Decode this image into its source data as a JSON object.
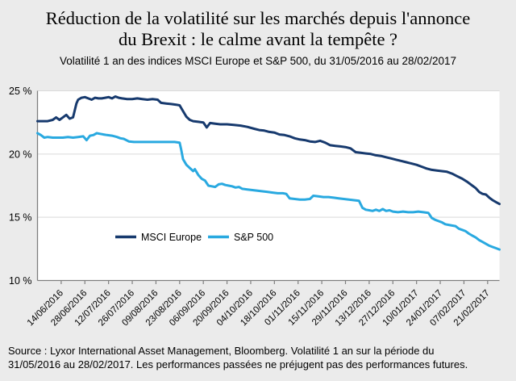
{
  "header": {
    "title_lines": [
      "Réduction de la volatilité sur les marchés depuis l'annonce",
      "du Brexit : le calme avant la tempête ?"
    ],
    "subtitle": "Volatilité 1 an des indices MSCI Europe et S&P 500, du 31/05/2016 au 28/02/2017"
  },
  "footer": {
    "source_lines": [
      "Source : Lyxor International Asset Management, Bloomberg. Volatilité 1 an sur la période du",
      "31/05/2016 au 28/02/2017. Les performances passées ne préjugent pas des performances futures."
    ]
  },
  "colors": {
    "background": "#ebebeb",
    "plot_background": "#ffffff",
    "gridline": "#d9d9d9",
    "axis": "#7f7f7f",
    "msci_europe": "#173A6E",
    "sp500": "#29A9E0",
    "text": "#000000"
  },
  "chart_data": {
    "type": "line",
    "title": "Réduction de la volatilité sur les marchés depuis l'annonce du Brexit : le calme avant la tempête ?",
    "subtitle": "Volatilité 1 an des indices MSCI Europe et S&P 500, du 31/05/2016 au 28/02/2017",
    "grid": true,
    "legend_position": "inside-bottom-left",
    "x_domain": [
      "31/05/2016",
      "28/02/2017"
    ],
    "x_total_days": 273,
    "x_tick_days": [
      14,
      28,
      42,
      56,
      70,
      84,
      98,
      112,
      126,
      140,
      154,
      168,
      182,
      196,
      210,
      224,
      238,
      252,
      266
    ],
    "x_tick_labels": [
      "14/06/2016",
      "28/06/2016",
      "12/07/2016",
      "26/07/2016",
      "09/08/2016",
      "23/08/2016",
      "06/09/2016",
      "20/09/2016",
      "04/10/2016",
      "18/10/2016",
      "01/11/2016",
      "15/11/2016",
      "29/11/2016",
      "13/12/2016",
      "27/12/2016",
      "10/01/2017",
      "24/01/2017",
      "07/02/2017",
      "21/02/2017"
    ],
    "y_axis": {
      "min": 10,
      "max": 25,
      "unit": "%",
      "tick_values": [
        10,
        15,
        20,
        25
      ],
      "tick_labels": [
        "10 %",
        "15 %",
        "20 %",
        "25 %"
      ],
      "gridline_values": [
        15,
        20,
        25
      ]
    },
    "series": [
      {
        "name": "MSCI Europe",
        "color": "#173A6E",
        "points": [
          [
            0,
            22.6
          ],
          [
            3,
            22.6
          ],
          [
            6,
            22.6
          ],
          [
            9,
            22.7
          ],
          [
            11,
            22.9
          ],
          [
            13,
            22.7
          ],
          [
            15,
            22.9
          ],
          [
            17,
            23.1
          ],
          [
            19,
            22.8
          ],
          [
            21,
            22.9
          ],
          [
            23,
            24.0
          ],
          [
            24,
            24.3
          ],
          [
            26,
            24.45
          ],
          [
            28,
            24.5
          ],
          [
            30,
            24.4
          ],
          [
            32,
            24.3
          ],
          [
            34,
            24.45
          ],
          [
            36,
            24.4
          ],
          [
            38,
            24.4
          ],
          [
            40,
            24.45
          ],
          [
            42,
            24.5
          ],
          [
            44,
            24.4
          ],
          [
            46,
            24.55
          ],
          [
            48,
            24.45
          ],
          [
            50,
            24.4
          ],
          [
            53,
            24.35
          ],
          [
            56,
            24.35
          ],
          [
            59,
            24.4
          ],
          [
            62,
            24.35
          ],
          [
            65,
            24.3
          ],
          [
            68,
            24.35
          ],
          [
            71,
            24.3
          ],
          [
            73,
            24.05
          ],
          [
            76,
            24.0
          ],
          [
            79,
            23.95
          ],
          [
            82,
            23.9
          ],
          [
            84,
            23.85
          ],
          [
            86,
            23.4
          ],
          [
            88,
            22.95
          ],
          [
            90,
            22.7
          ],
          [
            92,
            22.6
          ],
          [
            95,
            22.55
          ],
          [
            98,
            22.5
          ],
          [
            100,
            22.1
          ],
          [
            102,
            22.45
          ],
          [
            105,
            22.4
          ],
          [
            108,
            22.35
          ],
          [
            112,
            22.35
          ],
          [
            116,
            22.3
          ],
          [
            120,
            22.25
          ],
          [
            124,
            22.15
          ],
          [
            128,
            22.0
          ],
          [
            131,
            21.9
          ],
          [
            134,
            21.85
          ],
          [
            137,
            21.75
          ],
          [
            140,
            21.7
          ],
          [
            143,
            21.55
          ],
          [
            146,
            21.5
          ],
          [
            149,
            21.4
          ],
          [
            152,
            21.25
          ],
          [
            155,
            21.15
          ],
          [
            158,
            21.1
          ],
          [
            161,
            21.0
          ],
          [
            164,
            20.95
          ],
          [
            167,
            21.05
          ],
          [
            170,
            20.9
          ],
          [
            173,
            20.7
          ],
          [
            176,
            20.65
          ],
          [
            179,
            20.6
          ],
          [
            182,
            20.55
          ],
          [
            185,
            20.45
          ],
          [
            188,
            20.15
          ],
          [
            191,
            20.1
          ],
          [
            194,
            20.05
          ],
          [
            197,
            20.0
          ],
          [
            200,
            19.9
          ],
          [
            203,
            19.85
          ],
          [
            206,
            19.75
          ],
          [
            209,
            19.65
          ],
          [
            212,
            19.55
          ],
          [
            215,
            19.45
          ],
          [
            218,
            19.35
          ],
          [
            221,
            19.25
          ],
          [
            224,
            19.15
          ],
          [
            227,
            19.0
          ],
          [
            230,
            18.85
          ],
          [
            233,
            18.75
          ],
          [
            236,
            18.7
          ],
          [
            239,
            18.65
          ],
          [
            242,
            18.6
          ],
          [
            245,
            18.45
          ],
          [
            248,
            18.25
          ],
          [
            251,
            18.05
          ],
          [
            254,
            17.8
          ],
          [
            257,
            17.5
          ],
          [
            259,
            17.3
          ],
          [
            261,
            17.0
          ],
          [
            263,
            16.85
          ],
          [
            265,
            16.8
          ],
          [
            267,
            16.55
          ],
          [
            269,
            16.35
          ],
          [
            271,
            16.2
          ],
          [
            273,
            16.05
          ]
        ]
      },
      {
        "name": "S&P 500",
        "color": "#29A9E0",
        "points": [
          [
            0,
            21.65
          ],
          [
            2,
            21.5
          ],
          [
            4,
            21.3
          ],
          [
            6,
            21.35
          ],
          [
            9,
            21.3
          ],
          [
            12,
            21.3
          ],
          [
            15,
            21.3
          ],
          [
            18,
            21.35
          ],
          [
            21,
            21.3
          ],
          [
            24,
            21.35
          ],
          [
            27,
            21.4
          ],
          [
            29,
            21.1
          ],
          [
            31,
            21.45
          ],
          [
            33,
            21.5
          ],
          [
            35,
            21.65
          ],
          [
            37,
            21.6
          ],
          [
            39,
            21.55
          ],
          [
            41,
            21.5
          ],
          [
            44,
            21.45
          ],
          [
            47,
            21.35
          ],
          [
            49,
            21.25
          ],
          [
            51,
            21.2
          ],
          [
            54,
            21.0
          ],
          [
            57,
            20.95
          ],
          [
            60,
            20.95
          ],
          [
            63,
            20.95
          ],
          [
            66,
            20.95
          ],
          [
            69,
            20.95
          ],
          [
            72,
            20.95
          ],
          [
            75,
            20.95
          ],
          [
            78,
            20.95
          ],
          [
            81,
            20.95
          ],
          [
            84,
            20.9
          ],
          [
            85,
            20.3
          ],
          [
            86,
            19.6
          ],
          [
            88,
            19.15
          ],
          [
            90,
            18.9
          ],
          [
            92,
            18.65
          ],
          [
            93,
            18.8
          ],
          [
            95,
            18.35
          ],
          [
            97,
            18.05
          ],
          [
            99,
            17.9
          ],
          [
            101,
            17.5
          ],
          [
            103,
            17.45
          ],
          [
            105,
            17.4
          ],
          [
            107,
            17.6
          ],
          [
            109,
            17.65
          ],
          [
            111,
            17.55
          ],
          [
            113,
            17.5
          ],
          [
            115,
            17.45
          ],
          [
            117,
            17.35
          ],
          [
            119,
            17.4
          ],
          [
            121,
            17.25
          ],
          [
            124,
            17.2
          ],
          [
            127,
            17.15
          ],
          [
            130,
            17.1
          ],
          [
            133,
            17.05
          ],
          [
            136,
            17.0
          ],
          [
            139,
            16.95
          ],
          [
            142,
            16.9
          ],
          [
            145,
            16.9
          ],
          [
            147,
            16.85
          ],
          [
            149,
            16.5
          ],
          [
            152,
            16.45
          ],
          [
            155,
            16.4
          ],
          [
            158,
            16.4
          ],
          [
            161,
            16.45
          ],
          [
            163,
            16.7
          ],
          [
            166,
            16.65
          ],
          [
            169,
            16.6
          ],
          [
            172,
            16.6
          ],
          [
            175,
            16.55
          ],
          [
            178,
            16.5
          ],
          [
            181,
            16.45
          ],
          [
            184,
            16.4
          ],
          [
            187,
            16.35
          ],
          [
            190,
            16.3
          ],
          [
            192,
            15.75
          ],
          [
            194,
            15.6
          ],
          [
            196,
            15.55
          ],
          [
            198,
            15.5
          ],
          [
            200,
            15.6
          ],
          [
            202,
            15.5
          ],
          [
            204,
            15.65
          ],
          [
            206,
            15.5
          ],
          [
            208,
            15.55
          ],
          [
            210,
            15.45
          ],
          [
            213,
            15.4
          ],
          [
            216,
            15.45
          ],
          [
            219,
            15.4
          ],
          [
            222,
            15.4
          ],
          [
            225,
            15.45
          ],
          [
            228,
            15.4
          ],
          [
            231,
            15.35
          ],
          [
            233,
            14.95
          ],
          [
            235,
            14.8
          ],
          [
            237,
            14.7
          ],
          [
            239,
            14.6
          ],
          [
            241,
            14.45
          ],
          [
            243,
            14.4
          ],
          [
            245,
            14.35
          ],
          [
            247,
            14.3
          ],
          [
            249,
            14.1
          ],
          [
            251,
            14.0
          ],
          [
            253,
            13.9
          ],
          [
            255,
            13.7
          ],
          [
            257,
            13.55
          ],
          [
            259,
            13.4
          ],
          [
            261,
            13.2
          ],
          [
            263,
            13.05
          ],
          [
            265,
            12.9
          ],
          [
            267,
            12.75
          ],
          [
            269,
            12.65
          ],
          [
            271,
            12.55
          ],
          [
            273,
            12.45
          ]
        ]
      }
    ]
  }
}
